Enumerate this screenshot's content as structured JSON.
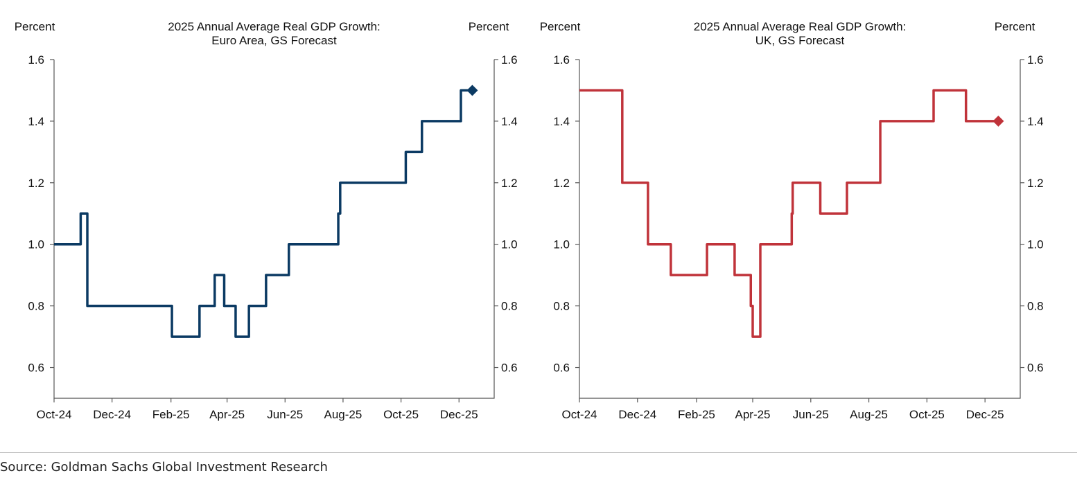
{
  "chart_data": [
    {
      "type": "line",
      "step": true,
      "title": [
        "2025 Annual Average Real GDP Growth:",
        "Euro Area, GS Forecast"
      ],
      "ylabel_left": "Percent",
      "ylabel_right": "Percent",
      "ylim": [
        0.5,
        1.6
      ],
      "yticks": [
        "0.6",
        "0.8",
        "1.0",
        "1.2",
        "1.4",
        "1.6"
      ],
      "xlim": [
        "2024-10-01",
        "2026-01-07"
      ],
      "xticks": [
        {
          "date": "2024-10-01",
          "label": "Oct-24"
        },
        {
          "date": "2024-12-01",
          "label": "Dec-24"
        },
        {
          "date": "2025-02-01",
          "label": "Feb-25"
        },
        {
          "date": "2025-04-01",
          "label": "Apr-25"
        },
        {
          "date": "2025-06-01",
          "label": "Jun-25"
        },
        {
          "date": "2025-08-01",
          "label": "Aug-25"
        },
        {
          "date": "2025-10-01",
          "label": "Oct-25"
        },
        {
          "date": "2025-12-01",
          "label": "Dec-25"
        }
      ],
      "color": "#0b3a63",
      "marker": "diamond",
      "series": [
        {
          "points": [
            [
              "2024-10-01",
              1.0
            ],
            [
              "2024-10-29",
              1.1
            ],
            [
              "2024-11-05",
              0.8
            ],
            [
              "2025-02-02",
              0.7
            ],
            [
              "2025-03-03",
              0.8
            ],
            [
              "2025-03-19",
              0.9
            ],
            [
              "2025-03-29",
              0.8
            ],
            [
              "2025-04-10",
              0.7
            ],
            [
              "2025-04-24",
              0.8
            ],
            [
              "2025-05-12",
              0.9
            ],
            [
              "2025-06-05",
              1.0
            ],
            [
              "2025-07-27",
              1.1
            ],
            [
              "2025-07-29",
              1.2
            ],
            [
              "2025-10-06",
              1.3
            ],
            [
              "2025-10-23",
              1.4
            ],
            [
              "2025-12-03",
              1.5
            ],
            [
              "2025-12-15",
              1.5
            ]
          ]
        }
      ]
    },
    {
      "type": "line",
      "step": true,
      "title": [
        "2025 Annual Average Real GDP Growth:",
        "UK, GS Forecast"
      ],
      "ylabel_left": "Percent",
      "ylabel_right": "Percent",
      "ylim": [
        0.5,
        1.6
      ],
      "yticks": [
        "0.6",
        "0.8",
        "1.0",
        "1.2",
        "1.4",
        "1.6"
      ],
      "xlim": [
        "2024-10-01",
        "2026-01-07"
      ],
      "xticks": [
        {
          "date": "2024-10-01",
          "label": "Oct-24"
        },
        {
          "date": "2024-12-01",
          "label": "Dec-24"
        },
        {
          "date": "2025-02-01",
          "label": "Feb-25"
        },
        {
          "date": "2025-04-01",
          "label": "Apr-25"
        },
        {
          "date": "2025-06-01",
          "label": "Jun-25"
        },
        {
          "date": "2025-08-01",
          "label": "Aug-25"
        },
        {
          "date": "2025-10-01",
          "label": "Oct-25"
        },
        {
          "date": "2025-12-01",
          "label": "Dec-25"
        }
      ],
      "color": "#c0333a",
      "marker": "diamond",
      "series": [
        {
          "points": [
            [
              "2024-10-01",
              1.5
            ],
            [
              "2024-11-15",
              1.2
            ],
            [
              "2024-12-12",
              1.0
            ],
            [
              "2025-01-05",
              0.9
            ],
            [
              "2025-02-12",
              1.0
            ],
            [
              "2025-03-13",
              0.9
            ],
            [
              "2025-03-30",
              0.8
            ],
            [
              "2025-04-01",
              0.7
            ],
            [
              "2025-04-09",
              1.0
            ],
            [
              "2025-05-12",
              1.1
            ],
            [
              "2025-05-13",
              1.2
            ],
            [
              "2025-06-11",
              1.1
            ],
            [
              "2025-07-09",
              1.2
            ],
            [
              "2025-08-13",
              1.4
            ],
            [
              "2025-10-08",
              1.5
            ],
            [
              "2025-11-11",
              1.4
            ],
            [
              "2025-12-15",
              1.4
            ]
          ]
        }
      ]
    }
  ],
  "source": "Source: Goldman Sachs Global Investment Research"
}
